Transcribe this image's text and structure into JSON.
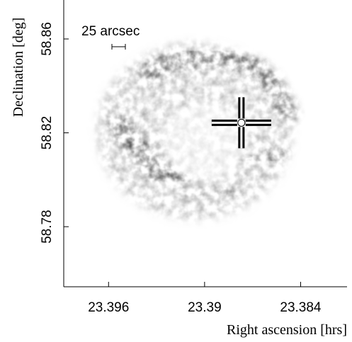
{
  "chart_data": {
    "type": "image",
    "xlabel": "Right ascension [hrs]",
    "ylabel": "Declination [deg]",
    "xlim": [
      23.3988,
      23.3811
    ],
    "ylim": [
      58.7544,
      58.8766
    ],
    "xticks": [
      23.396,
      23.39,
      23.384
    ],
    "yticks": [
      58.78,
      58.82,
      58.86
    ],
    "annotation": "25 arcsec",
    "marker": {
      "x": 23.3877,
      "y": 58.8243
    }
  }
}
